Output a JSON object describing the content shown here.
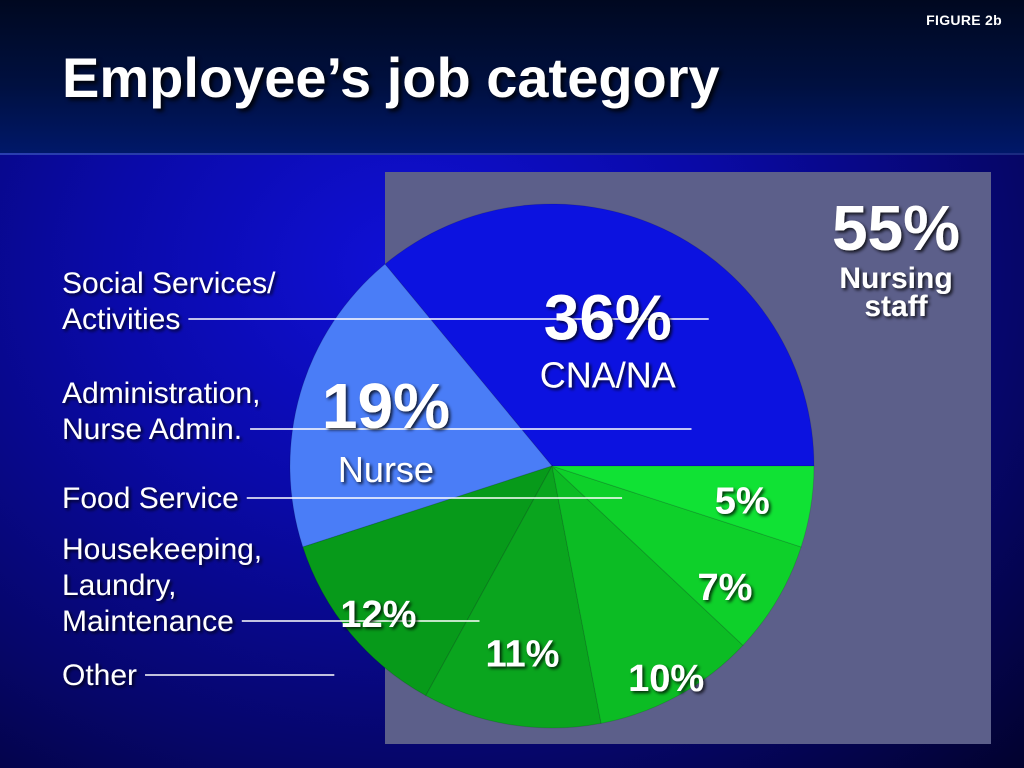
{
  "figure_label": "FIGURE 2b",
  "title": "Employee’s job category",
  "group_callout": {
    "value": "55%",
    "label_lines": [
      "Nursing",
      "staff"
    ]
  },
  "chart_data": {
    "type": "pie",
    "title": "Employee’s job category",
    "unit": "%",
    "slices": [
      {
        "name": "CNA/NA",
        "value": 36,
        "label": "36%",
        "color": "#0c12e0",
        "group": "Nursing staff"
      },
      {
        "name": "Nurse",
        "value": 19,
        "label": "19%",
        "color": "#4a7df7",
        "group": "Nursing staff"
      },
      {
        "name": "Other",
        "value": 12,
        "label": "12%",
        "color": "#079a1a",
        "group": ""
      },
      {
        "name": "Housekeeping, Laundry, Maintenance",
        "value": 11,
        "label": "11%",
        "color": "#0aa51e",
        "group": ""
      },
      {
        "name": "Food Service",
        "value": 10,
        "label": "10%",
        "color": "#0cbc24",
        "group": ""
      },
      {
        "name": "Administration, Nurse Admin.",
        "value": 7,
        "label": "7%",
        "color": "#0ed02a",
        "group": ""
      },
      {
        "name": "Social Services/ Activities",
        "value": 5,
        "label": "5%",
        "color": "#10e234",
        "group": ""
      }
    ],
    "side_labels": [
      {
        "slice": "Social Services/ Activities",
        "lines": [
          "Social Services/",
          "Activities"
        ]
      },
      {
        "slice": "Administration, Nurse Admin.",
        "lines": [
          "Administration,",
          "Nurse Admin."
        ]
      },
      {
        "slice": "Food Service",
        "lines": [
          "Food Service"
        ]
      },
      {
        "slice": "Housekeeping, Laundry, Maintenance",
        "lines": [
          "Housekeeping,",
          "Laundry,",
          "Maintenance"
        ]
      },
      {
        "slice": "Other",
        "lines": [
          "Other"
        ]
      }
    ],
    "inside_labels": [
      {
        "slice": "CNA/NA",
        "lines": [
          "CNA/NA"
        ]
      },
      {
        "slice": "Nurse",
        "lines": [
          "Nurse"
        ]
      }
    ],
    "highlight_color": "#5c5f8a",
    "legend": "none"
  }
}
